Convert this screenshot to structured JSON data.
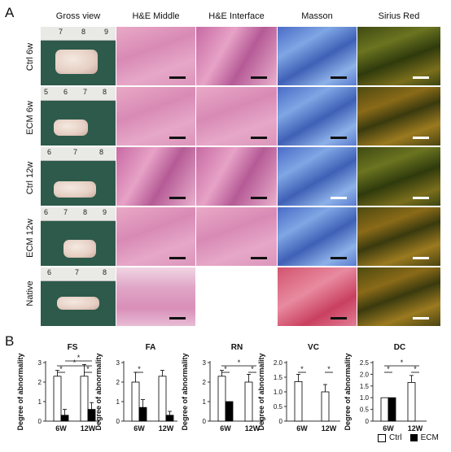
{
  "panel_a_label": "A",
  "panel_b_label": "B",
  "columns": [
    "Gross view",
    "H&E Middle",
    "H&E Interface",
    "Masson",
    "Sirius Red"
  ],
  "rows": [
    "Ctrl 6w",
    "ECM 6w",
    "Ctrl 12w",
    "ECM 12w",
    "Native"
  ],
  "rulers": [
    [
      "7",
      "8",
      "9"
    ],
    [
      "5",
      "6",
      "7",
      "8"
    ],
    [
      "6",
      "7",
      "8"
    ],
    [
      "6",
      "7",
      "8",
      "9"
    ],
    [
      "6",
      "7",
      "8"
    ]
  ],
  "colors": {
    "ctrl": "#ffffff",
    "ecm": "#000000",
    "axis": "#333333"
  },
  "legend": {
    "ctrl": "Ctrl",
    "ecm": "ECM"
  },
  "chart_data": [
    {
      "type": "bar",
      "title": "FS",
      "categories": [
        "6W",
        "12W"
      ],
      "ylabel": "Degree of abnormality",
      "ylim": [
        0,
        3
      ],
      "yticks": [
        0,
        1,
        2,
        3
      ],
      "series": [
        {
          "name": "Ctrl",
          "values": [
            2.3,
            2.3
          ],
          "errors": [
            0.3,
            0.6
          ]
        },
        {
          "name": "ECM",
          "values": [
            0.3,
            0.6
          ],
          "errors": [
            0.3,
            0.35
          ]
        }
      ],
      "significance": [
        "*",
        "*",
        "*",
        "*"
      ]
    },
    {
      "type": "bar",
      "title": "FA",
      "categories": [
        "6W",
        "12W"
      ],
      "ylabel": "Degree of abnormality",
      "ylim": [
        0,
        3
      ],
      "yticks": [
        0,
        1,
        2,
        3
      ],
      "series": [
        {
          "name": "Ctrl",
          "values": [
            2.0,
            2.3
          ],
          "errors": [
            0.5,
            0.3
          ]
        },
        {
          "name": "ECM",
          "values": [
            0.7,
            0.3
          ],
          "errors": [
            0.4,
            0.2
          ]
        }
      ],
      "significance": [
        "*"
      ]
    },
    {
      "type": "bar",
      "title": "RN",
      "categories": [
        "6W",
        "12W"
      ],
      "ylabel": "Degree of abnormality",
      "ylim": [
        0,
        3
      ],
      "yticks": [
        0,
        1,
        2,
        3
      ],
      "series": [
        {
          "name": "Ctrl",
          "values": [
            2.3,
            2.0
          ],
          "errors": [
            0.3,
            0.4
          ]
        },
        {
          "name": "ECM",
          "values": [
            1.0,
            0.0
          ],
          "errors": [
            0,
            0
          ]
        }
      ],
      "significance": [
        "*",
        "*",
        "*"
      ]
    },
    {
      "type": "bar",
      "title": "VC",
      "categories": [
        "6W",
        "12W"
      ],
      "ylabel": "Degree of abnormality",
      "ylim": [
        0,
        2
      ],
      "yticks": [
        0,
        0.5,
        1.0,
        1.5,
        2.0
      ],
      "series": [
        {
          "name": "Ctrl",
          "values": [
            1.35,
            1.0
          ],
          "errors": [
            0.25,
            0.25
          ]
        },
        {
          "name": "ECM",
          "values": [
            0,
            0
          ],
          "errors": [
            0,
            0
          ]
        }
      ],
      "significance": [
        "*",
        "*"
      ]
    },
    {
      "type": "bar",
      "title": "DC",
      "categories": [
        "6W",
        "12W"
      ],
      "ylabel": "Degree of abnormality",
      "ylim": [
        0,
        2.5
      ],
      "yticks": [
        0,
        0.5,
        1.0,
        1.5,
        2.0,
        2.5
      ],
      "series": [
        {
          "name": "Ctrl",
          "values": [
            1.0,
            1.65
          ],
          "errors": [
            0,
            0.3
          ]
        },
        {
          "name": "ECM",
          "values": [
            1.0,
            0
          ],
          "errors": [
            0,
            0
          ]
        }
      ],
      "significance": [
        "*",
        "*",
        "*"
      ]
    }
  ]
}
